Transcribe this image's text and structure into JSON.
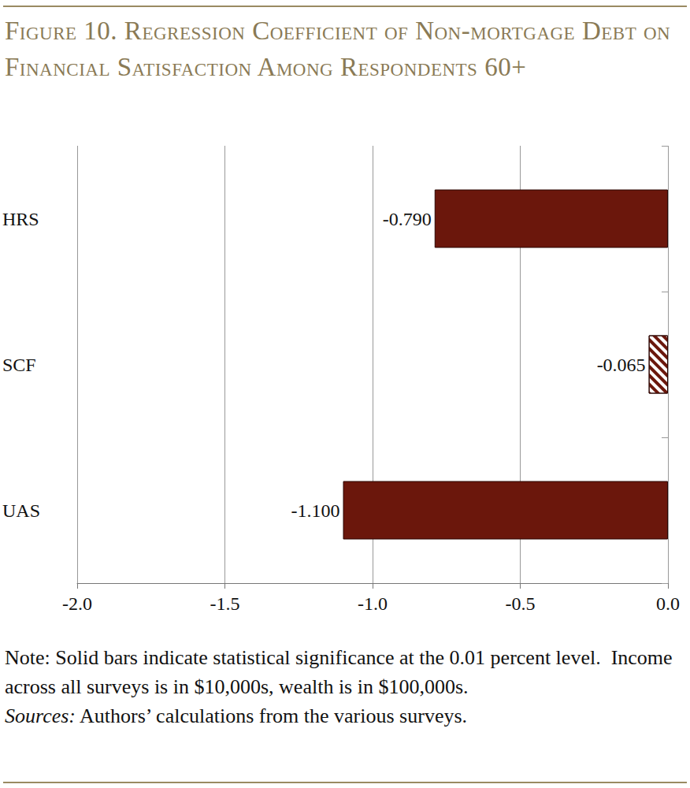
{
  "chart_data": {
    "type": "bar",
    "title": "Figure 10. Regression Coefficient of Non-mortgage Debt on Financial Satisfaction Among Respondents 60+",
    "orientation": "horizontal",
    "categories": [
      "HRS",
      "SCF",
      "UAS"
    ],
    "values": [
      -0.79,
      -0.065,
      -1.1
    ],
    "value_labels": [
      "-0.790",
      "-0.065",
      "-1.100"
    ],
    "significant": [
      true,
      false,
      true
    ],
    "color": "#6b170c",
    "xlim": [
      -2,
      0
    ],
    "xticks": [
      {
        "value": -2,
        "label": "-2.0"
      },
      {
        "value": -1.5,
        "label": "-1.5"
      },
      {
        "value": -1,
        "label": "-1.0"
      },
      {
        "value": -0.5,
        "label": "-0.5"
      },
      {
        "value": 0,
        "label": "0.0"
      }
    ],
    "grid": true,
    "data_labels": true,
    "note": "Note: Solid bars indicate statistical significance at the 0.01 percent level.  Income across all surveys is in $10,000s, wealth is in $100,000s.",
    "source_label": "Sources:",
    "source": "Authors’ calculations from the various surveys."
  }
}
